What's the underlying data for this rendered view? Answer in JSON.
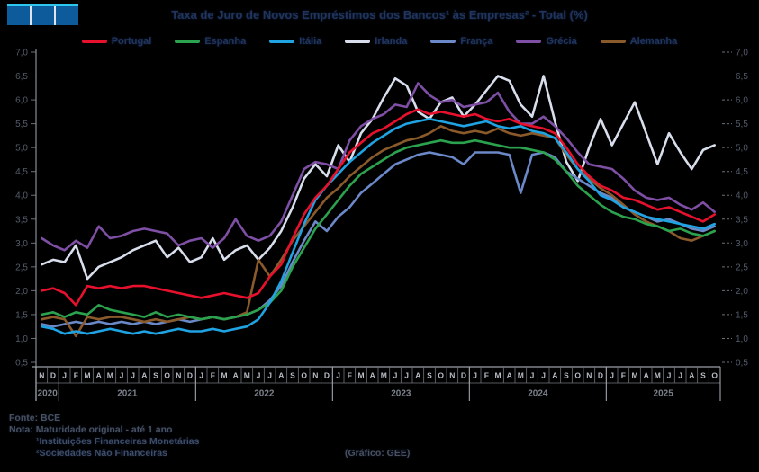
{
  "title": "Taxa de Juro de Novos Empréstimos dos Bancos¹ às Empresas² - Total (%)",
  "footer": {
    "fonte": "Fonte: BCE",
    "nota": "Nota: Maturidade original - até 1 ano",
    "note1": "¹Instituições Financeiras Monetárias",
    "note2": "²Sociedades Não Financeiras",
    "grafico": "(Gráfico: GEE)"
  },
  "chart_data": {
    "type": "line",
    "title": "Taxa de Juro de Novos Empréstimos dos Bancos às Empresas - Total (%)",
    "xlabel": "",
    "ylabel": "",
    "grid": false,
    "legend_position": "top",
    "background": "#000000",
    "y_axis": {
      "min": 0.5,
      "max": 7.0,
      "step": 0.5,
      "tick_labels": [
        "0,5",
        "1,0",
        "1,5",
        "2,0",
        "2,5",
        "3,0",
        "3,5",
        "4,0",
        "4,5",
        "5,0",
        "5,5",
        "6,0",
        "6,5",
        "7,0"
      ]
    },
    "x_axis": {
      "month_letters": [
        "N",
        "D",
        "J",
        "F",
        "M",
        "A",
        "M",
        "J",
        "J",
        "A",
        "S",
        "O",
        "N",
        "D",
        "J",
        "F",
        "M",
        "A",
        "M",
        "J",
        "J",
        "A",
        "S",
        "O",
        "N",
        "D",
        "J",
        "F",
        "M",
        "A",
        "M",
        "J",
        "J",
        "A",
        "S",
        "O",
        "N",
        "D",
        "J",
        "F",
        "M",
        "A",
        "M",
        "J",
        "J",
        "A",
        "S",
        "O",
        "N",
        "D",
        "J",
        "F",
        "M",
        "A",
        "M",
        "J",
        "J",
        "A",
        "S",
        "O"
      ],
      "year_groups": [
        {
          "label": "2020",
          "months": 2
        },
        {
          "label": "2021",
          "months": 12
        },
        {
          "label": "2022",
          "months": 12
        },
        {
          "label": "2023",
          "months": 12
        },
        {
          "label": "2024",
          "months": 12
        },
        {
          "label": "2025",
          "months": 10
        }
      ]
    },
    "draw_order": [
      3,
      4,
      6,
      1,
      2,
      5,
      0
    ],
    "series": [
      {
        "name": "Portugal",
        "color": "#e8112d",
        "values": [
          2.0,
          2.05,
          1.95,
          1.7,
          2.1,
          2.05,
          2.1,
          2.05,
          2.1,
          2.1,
          2.05,
          2.0,
          1.95,
          1.9,
          1.85,
          1.9,
          1.95,
          1.9,
          1.85,
          1.95,
          2.3,
          2.55,
          3.1,
          3.6,
          3.95,
          4.2,
          4.55,
          4.9,
          5.1,
          5.3,
          5.4,
          5.55,
          5.7,
          5.8,
          5.7,
          5.75,
          5.7,
          5.65,
          5.7,
          5.6,
          5.55,
          5.6,
          5.5,
          5.45,
          5.4,
          5.3,
          5.0,
          4.65,
          4.4,
          4.2,
          4.1,
          3.95,
          3.9,
          3.8,
          3.7,
          3.75,
          3.65,
          3.55,
          3.45,
          3.6
        ]
      },
      {
        "name": "Espanha",
        "color": "#2ba24d",
        "values": [
          1.5,
          1.55,
          1.45,
          1.55,
          1.5,
          1.7,
          1.6,
          1.55,
          1.5,
          1.45,
          1.55,
          1.45,
          1.5,
          1.45,
          1.4,
          1.45,
          1.4,
          1.45,
          1.5,
          1.6,
          1.75,
          2.0,
          2.5,
          2.9,
          3.3,
          3.6,
          3.9,
          4.2,
          4.45,
          4.6,
          4.75,
          4.9,
          5.0,
          5.05,
          5.1,
          5.15,
          5.1,
          5.1,
          5.15,
          5.1,
          5.05,
          5.0,
          5.0,
          4.95,
          4.9,
          4.75,
          4.5,
          4.2,
          4.0,
          3.8,
          3.65,
          3.55,
          3.5,
          3.4,
          3.35,
          3.25,
          3.3,
          3.2,
          3.15,
          3.25
        ]
      },
      {
        "name": "Itália",
        "color": "#1fa3e2",
        "values": [
          1.25,
          1.2,
          1.1,
          1.15,
          1.1,
          1.15,
          1.2,
          1.15,
          1.1,
          1.15,
          1.1,
          1.15,
          1.2,
          1.15,
          1.15,
          1.2,
          1.15,
          1.2,
          1.25,
          1.4,
          1.75,
          2.2,
          2.8,
          3.4,
          3.9,
          4.2,
          4.45,
          4.7,
          4.9,
          5.1,
          5.25,
          5.4,
          5.5,
          5.55,
          5.6,
          5.55,
          5.5,
          5.45,
          5.5,
          5.55,
          5.45,
          5.4,
          5.45,
          5.35,
          5.3,
          5.2,
          4.9,
          4.55,
          4.3,
          4.0,
          3.9,
          3.75,
          3.65,
          3.55,
          3.5,
          3.45,
          3.4,
          3.35,
          3.3,
          3.4
        ]
      },
      {
        "name": "Irlanda",
        "color": "#d8deec",
        "values": [
          2.55,
          2.65,
          2.6,
          2.95,
          2.25,
          2.5,
          2.6,
          2.7,
          2.85,
          2.95,
          3.05,
          2.7,
          2.9,
          2.6,
          2.7,
          3.1,
          2.65,
          2.85,
          2.95,
          2.65,
          2.9,
          3.25,
          3.75,
          4.35,
          4.65,
          4.4,
          5.05,
          4.7,
          5.3,
          5.6,
          6.05,
          6.45,
          6.3,
          5.75,
          5.6,
          5.95,
          6.05,
          5.65,
          5.9,
          6.2,
          6.5,
          6.4,
          5.9,
          5.65,
          6.5,
          5.55,
          4.7,
          4.3,
          5.0,
          5.6,
          5.05,
          5.5,
          5.95,
          5.3,
          4.65,
          5.3,
          4.9,
          4.55,
          4.95,
          5.05
        ]
      },
      {
        "name": "França",
        "color": "#6b89c8",
        "values": [
          1.3,
          1.25,
          1.3,
          1.35,
          1.3,
          1.35,
          1.3,
          1.35,
          1.3,
          1.35,
          1.3,
          1.35,
          1.4,
          1.35,
          1.4,
          1.45,
          1.4,
          1.45,
          1.5,
          1.6,
          1.8,
          2.1,
          2.6,
          3.05,
          3.45,
          3.25,
          3.55,
          3.75,
          4.05,
          4.25,
          4.45,
          4.65,
          4.75,
          4.85,
          4.9,
          4.85,
          4.8,
          4.65,
          4.9,
          4.9,
          4.9,
          4.85,
          4.05,
          4.85,
          4.9,
          4.8,
          4.5,
          4.35,
          4.2,
          4.05,
          3.95,
          3.75,
          3.65,
          3.55,
          3.45,
          3.5,
          3.4,
          3.3,
          3.25,
          3.35
        ]
      },
      {
        "name": "Grécia",
        "color": "#7e4fa5",
        "values": [
          3.1,
          2.95,
          2.85,
          3.05,
          2.9,
          3.35,
          3.1,
          3.15,
          3.25,
          3.3,
          3.25,
          3.2,
          2.95,
          3.05,
          3.1,
          2.9,
          3.1,
          3.5,
          3.15,
          3.05,
          3.15,
          3.45,
          4.0,
          4.55,
          4.7,
          4.65,
          4.55,
          5.15,
          5.45,
          5.6,
          5.7,
          5.9,
          5.85,
          6.35,
          6.1,
          5.95,
          6.0,
          5.85,
          5.9,
          5.95,
          6.15,
          5.75,
          5.5,
          5.5,
          5.65,
          5.45,
          5.2,
          4.9,
          4.65,
          4.6,
          4.55,
          4.35,
          4.1,
          3.95,
          3.9,
          3.95,
          3.8,
          3.7,
          3.85,
          3.65
        ]
      },
      {
        "name": "Alemanha",
        "color": "#8a5a2b",
        "values": [
          1.4,
          1.45,
          1.4,
          1.05,
          1.45,
          1.4,
          1.45,
          1.45,
          1.4,
          1.35,
          1.4,
          1.35,
          1.4,
          1.45,
          1.4,
          1.45,
          1.4,
          1.45,
          1.55,
          2.65,
          2.3,
          2.65,
          3.05,
          3.35,
          3.65,
          3.95,
          4.15,
          4.4,
          4.6,
          4.8,
          4.95,
          5.05,
          5.15,
          5.2,
          5.3,
          5.45,
          5.35,
          5.3,
          5.35,
          5.3,
          5.4,
          5.3,
          5.25,
          5.3,
          5.25,
          5.2,
          4.85,
          4.55,
          4.35,
          4.15,
          4.0,
          3.8,
          3.6,
          3.45,
          3.35,
          3.25,
          3.1,
          3.05,
          3.15,
          3.25
        ]
      }
    ]
  }
}
